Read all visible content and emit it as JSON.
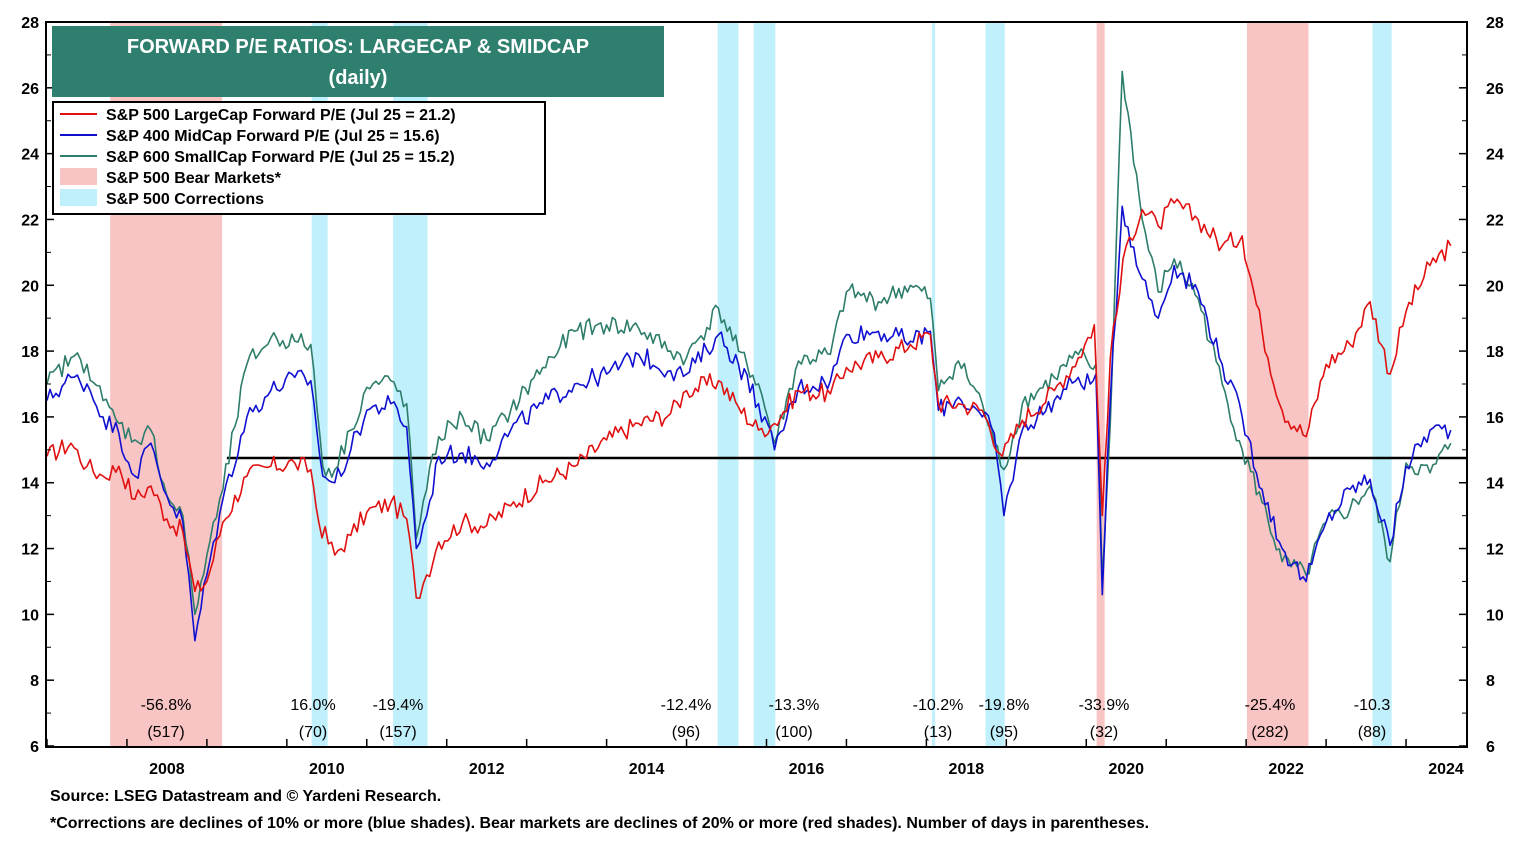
{
  "chart_data": {
    "type": "line",
    "title": "FORWARD P/E RATIOS: LARGECAP & SMIDCAP",
    "subtitle": "(daily)",
    "xlim": [
      2007.0,
      2024.75
    ],
    "ylim": [
      6,
      28
    ],
    "x_ticks": [
      "2008",
      "2010",
      "2012",
      "2014",
      "2016",
      "2018",
      "2020",
      "2022",
      "2024"
    ],
    "y_ticks": [
      "6",
      "8",
      "10",
      "12",
      "14",
      "16",
      "18",
      "20",
      "22",
      "24",
      "26",
      "28"
    ],
    "reference_line": 14.75,
    "reference_line_start": 2009.25,
    "legend": {
      "placement": "top-left",
      "entries": [
        {
          "label": "S&P 500 LargeCap Forward P/E (Jul 25 = 21.2)",
          "color": "#e01010",
          "kind": "line"
        },
        {
          "label": "S&P 400 MidCap Forward P/E (Jul 25 = 15.6)",
          "color": "#1010d0",
          "kind": "line"
        },
        {
          "label": "S&P 600 SmallCap Forward P/E (Jul 25 = 15.2)",
          "color": "#2e7d6b",
          "kind": "line"
        },
        {
          "label": "S&P 500 Bear Markets*",
          "color": "#f9c4c4",
          "kind": "box"
        },
        {
          "label": "S&P 500 Corrections",
          "color": "#bff0fb",
          "kind": "box"
        }
      ]
    },
    "shaded_periods": [
      {
        "start": 2007.79,
        "end": 2009.19,
        "kind": "bear",
        "pct": "-56.8%",
        "days": "(517)"
      },
      {
        "start": 2010.31,
        "end": 2010.51,
        "kind": "correction",
        "pct": "16.0%",
        "days": "(70)"
      },
      {
        "start": 2011.33,
        "end": 2011.76,
        "kind": "correction",
        "pct": "-19.4%",
        "days": "(157)"
      },
      {
        "start": 2015.39,
        "end": 2015.65,
        "kind": "correction",
        "pct": "-12.4%",
        "days": "(96)"
      },
      {
        "start": 2015.84,
        "end": 2016.11,
        "kind": "correction",
        "pct": "-13.3%",
        "days": "(100)"
      },
      {
        "start": 2018.07,
        "end": 2018.11,
        "kind": "correction",
        "pct": "-10.2%",
        "days": "(13)"
      },
      {
        "start": 2018.74,
        "end": 2018.98,
        "kind": "correction",
        "pct": "-19.8%",
        "days": "(95)"
      },
      {
        "start": 2020.13,
        "end": 2020.23,
        "kind": "bear",
        "pct": "-33.9%",
        "days": "(32)"
      },
      {
        "start": 2022.01,
        "end": 2022.78,
        "kind": "bear",
        "pct": "-25.4%",
        "days": "(282)"
      },
      {
        "start": 2023.58,
        "end": 2023.82,
        "kind": "correction",
        "pct": "-10.3",
        "days": "(88)"
      }
    ],
    "series": [
      {
        "name": "S&P 500 LargeCap Forward P/E (Jul 25 = 21.2)",
        "color": "#e01010",
        "x": [
          2007.0,
          2007.3,
          2007.5,
          2007.7,
          2007.9,
          2008.1,
          2008.3,
          2008.5,
          2008.7,
          2008.85,
          2009.0,
          2009.2,
          2009.5,
          2009.8,
          2010.1,
          2010.3,
          2010.4,
          2010.6,
          2010.8,
          2011.0,
          2011.3,
          2011.5,
          2011.62,
          2011.75,
          2011.9,
          2012.2,
          2012.5,
          2012.8,
          2013.2,
          2013.6,
          2014.0,
          2014.4,
          2014.8,
          2015.0,
          2015.4,
          2015.65,
          2015.9,
          2016.1,
          2016.4,
          2016.8,
          2017.0,
          2017.4,
          2017.8,
          2018.05,
          2018.15,
          2018.4,
          2018.7,
          2018.95,
          2019.2,
          2019.6,
          2019.9,
          2020.1,
          2020.2,
          2020.3,
          2020.5,
          2020.7,
          2020.9,
          2021.1,
          2021.4,
          2021.7,
          2021.95,
          2022.2,
          2022.45,
          2022.75,
          2023.0,
          2023.3,
          2023.55,
          2023.8,
          2024.0,
          2024.3,
          2024.56
        ],
        "values": [
          14.8,
          15.2,
          14.5,
          14.2,
          14.5,
          13.5,
          13.9,
          12.9,
          12.5,
          10.7,
          11.0,
          12.8,
          14.2,
          14.5,
          14.6,
          14.4,
          12.8,
          11.8,
          12.4,
          13.1,
          13.4,
          12.9,
          10.5,
          11.2,
          12.2,
          12.8,
          12.7,
          13.3,
          14.0,
          14.5,
          15.3,
          15.8,
          16.1,
          16.8,
          17.1,
          16.3,
          15.6,
          15.8,
          16.8,
          16.7,
          17.5,
          17.8,
          18.2,
          18.5,
          16.4,
          16.4,
          16.2,
          14.8,
          15.9,
          16.8,
          17.8,
          18.8,
          13.0,
          17.8,
          21.2,
          22.3,
          21.8,
          22.5,
          22.0,
          21.2,
          21.5,
          18.6,
          16.2,
          15.4,
          17.6,
          18.2,
          19.5,
          17.3,
          19.2,
          20.6,
          21.2
        ]
      },
      {
        "name": "S&P 400 MidCap Forward P/E (Jul 25 = 15.6)",
        "color": "#1010d0",
        "x": [
          2007.0,
          2007.3,
          2007.5,
          2007.7,
          2007.9,
          2008.1,
          2008.3,
          2008.5,
          2008.7,
          2008.85,
          2009.0,
          2009.2,
          2009.5,
          2009.8,
          2010.1,
          2010.3,
          2010.45,
          2010.6,
          2010.8,
          2011.0,
          2011.3,
          2011.5,
          2011.62,
          2011.75,
          2011.9,
          2012.2,
          2012.5,
          2012.8,
          2013.2,
          2013.6,
          2014.0,
          2014.4,
          2014.8,
          2015.0,
          2015.4,
          2015.65,
          2015.9,
          2016.1,
          2016.4,
          2016.8,
          2017.0,
          2017.4,
          2017.8,
          2018.05,
          2018.15,
          2018.4,
          2018.7,
          2018.85,
          2018.97,
          2019.2,
          2019.6,
          2019.9,
          2020.05,
          2020.12,
          2020.2,
          2020.3,
          2020.45,
          2020.7,
          2020.9,
          2021.1,
          2021.4,
          2021.7,
          2021.95,
          2022.2,
          2022.45,
          2022.75,
          2023.0,
          2023.3,
          2023.55,
          2023.8,
          2024.0,
          2024.3,
          2024.56
        ],
        "values": [
          16.5,
          17.2,
          17.0,
          16.0,
          15.5,
          14.2,
          15.2,
          13.6,
          12.8,
          9.2,
          11.2,
          13.5,
          16.0,
          16.8,
          17.2,
          17.1,
          14.2,
          14.0,
          15.0,
          16.2,
          16.4,
          15.7,
          12.0,
          13.0,
          14.8,
          14.9,
          14.6,
          15.6,
          16.4,
          17.0,
          17.3,
          17.9,
          17.4,
          17.3,
          18.5,
          17.6,
          16.4,
          15.0,
          16.9,
          17.1,
          18.5,
          18.6,
          18.3,
          18.6,
          16.2,
          16.6,
          16.0,
          15.5,
          13.0,
          15.6,
          16.5,
          17.2,
          17.0,
          17.3,
          10.6,
          16.5,
          22.4,
          20.2,
          19.0,
          20.6,
          19.8,
          17.6,
          16.0,
          13.8,
          12.0,
          11.0,
          12.8,
          13.8,
          14.1,
          12.1,
          14.5,
          15.6,
          15.6
        ]
      },
      {
        "name": "S&P 600 SmallCap Forward P/E (Jul 25 = 15.2)",
        "color": "#2e7d6b",
        "x": [
          2007.0,
          2007.3,
          2007.5,
          2007.7,
          2007.9,
          2008.1,
          2008.3,
          2008.5,
          2008.7,
          2008.85,
          2009.0,
          2009.2,
          2009.5,
          2009.8,
          2010.1,
          2010.3,
          2010.45,
          2010.6,
          2010.8,
          2011.0,
          2011.3,
          2011.5,
          2011.62,
          2011.75,
          2011.9,
          2012.2,
          2012.5,
          2012.8,
          2013.2,
          2013.6,
          2014.0,
          2014.4,
          2014.8,
          2015.0,
          2015.4,
          2015.65,
          2015.9,
          2016.1,
          2016.4,
          2016.8,
          2017.0,
          2017.4,
          2017.8,
          2018.05,
          2018.15,
          2018.4,
          2018.7,
          2018.85,
          2018.97,
          2019.2,
          2019.6,
          2019.9,
          2020.05,
          2020.12,
          2020.2,
          2020.3,
          2020.45,
          2020.7,
          2020.9,
          2021.1,
          2021.4,
          2021.7,
          2021.95,
          2022.2,
          2022.45,
          2022.75,
          2023.0,
          2023.3,
          2023.55,
          2023.8,
          2024.0,
          2024.3,
          2024.56
        ],
        "values": [
          17.0,
          17.8,
          17.6,
          16.5,
          15.8,
          15.3,
          15.6,
          13.6,
          13.0,
          10.0,
          11.8,
          13.8,
          17.6,
          18.4,
          18.3,
          18.2,
          14.5,
          14.4,
          15.6,
          16.9,
          17.1,
          16.4,
          12.3,
          13.8,
          15.4,
          16.0,
          15.3,
          16.2,
          17.5,
          18.6,
          18.8,
          18.7,
          18.0,
          17.8,
          19.3,
          18.0,
          17.0,
          15.2,
          17.7,
          17.9,
          19.8,
          19.5,
          20.0,
          19.6,
          16.8,
          17.7,
          16.4,
          15.2,
          14.4,
          16.4,
          17.2,
          17.9,
          17.5,
          17.6,
          11.0,
          15.8,
          26.5,
          22.0,
          19.8,
          20.8,
          19.6,
          17.0,
          15.0,
          13.4,
          11.6,
          11.2,
          12.8,
          13.2,
          13.9,
          11.6,
          14.6,
          14.3,
          15.2
        ]
      }
    ]
  },
  "footnotes": {
    "source": "Source: LSEG Datastream and © Yardeni Research.",
    "note": "*Corrections are declines of 10% or more (blue shades). Bear markets are declines of 20% or more (red shades). Number of days in parentheses."
  }
}
